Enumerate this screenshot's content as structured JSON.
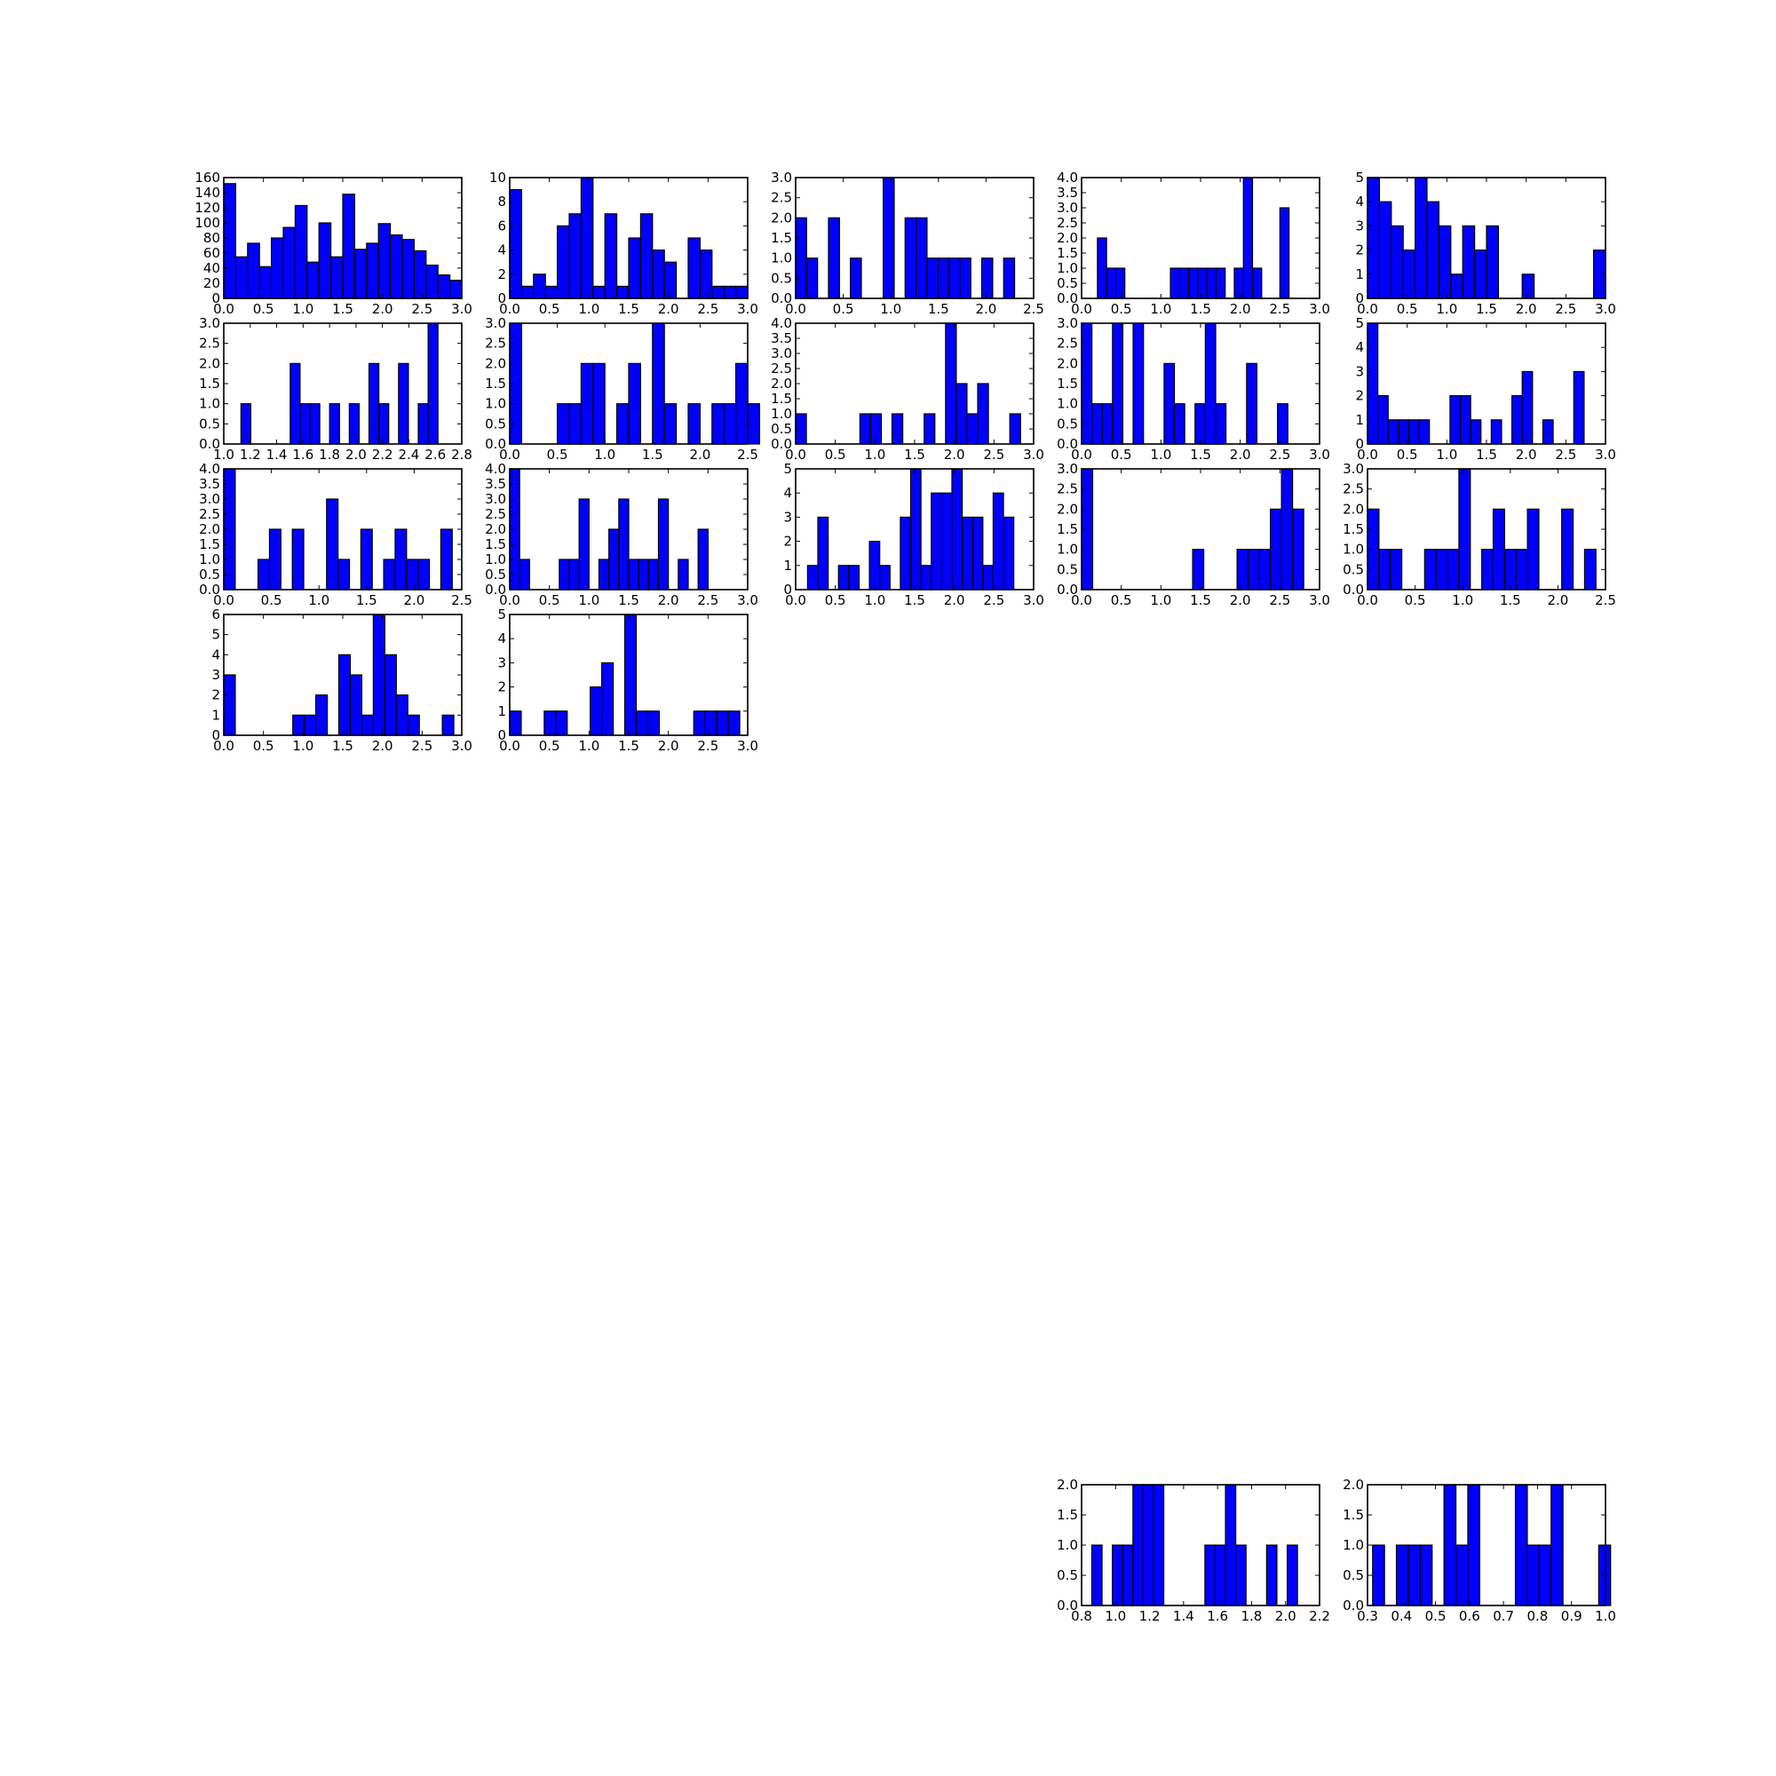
{
  "colors": {
    "bar_fill": "#0000ff",
    "bar_edge": "#000000",
    "background": "#ffffff"
  },
  "chart_data": [
    {
      "type": "bar",
      "xlim": [
        0,
        3.0
      ],
      "ylim": [
        0,
        160
      ],
      "xticks": [
        "0.0",
        "0.5",
        "1.0",
        "1.5",
        "2.0",
        "2.5",
        "3.0"
      ],
      "yticks": [
        "0",
        "20",
        "40",
        "60",
        "80",
        "100",
        "120",
        "140",
        "160"
      ],
      "bin_start": 0.0,
      "bin_width": 0.15,
      "values": [
        152,
        55,
        73,
        42,
        80,
        94,
        123,
        48,
        100,
        55,
        138,
        65,
        73,
        99,
        84,
        78,
        63,
        44,
        31,
        24
      ],
      "grid": false
    },
    {
      "type": "bar",
      "xlim": [
        0,
        3.0
      ],
      "ylim": [
        0,
        10
      ],
      "xticks": [
        "0.0",
        "0.5",
        "1.0",
        "1.5",
        "2.0",
        "2.5",
        "3.0"
      ],
      "yticks": [
        "0",
        "2",
        "4",
        "6",
        "8",
        "10"
      ],
      "bin_start": 0.0,
      "bin_width": 0.15,
      "values": [
        9,
        1,
        2,
        1,
        6,
        7,
        10,
        1,
        7,
        1,
        5,
        7,
        4,
        3,
        0,
        5,
        4,
        1,
        1,
        1
      ],
      "grid": false
    },
    {
      "type": "bar",
      "xlim": [
        0,
        2.5
      ],
      "ylim": [
        0,
        3.0
      ],
      "xticks": [
        "0.0",
        "0.5",
        "1.0",
        "1.5",
        "2.0",
        "2.5"
      ],
      "yticks": [
        "0.0",
        "0.5",
        "1.0",
        "1.5",
        "2.0",
        "2.5",
        "3.0"
      ],
      "bin_start": 0.0,
      "bin_width": 0.115,
      "values": [
        2,
        1,
        0,
        2,
        0,
        1,
        0,
        0,
        3,
        0,
        2,
        2,
        1,
        1,
        1,
        1,
        0,
        1,
        0,
        1
      ],
      "grid": false
    },
    {
      "type": "bar",
      "xlim": [
        0,
        3.0
      ],
      "ylim": [
        0,
        4.0
      ],
      "xticks": [
        "0.0",
        "0.5",
        "1.0",
        "1.5",
        "2.0",
        "2.5",
        "3.0"
      ],
      "yticks": [
        "0.0",
        "0.5",
        "1.0",
        "1.5",
        "2.0",
        "2.5",
        "3.0",
        "3.5",
        "4.0"
      ],
      "bin_start": 0.2,
      "bin_width": 0.115,
      "values": [
        2,
        1,
        1,
        0,
        0,
        0,
        0,
        0,
        1,
        1,
        1,
        1,
        1,
        1,
        0,
        1,
        4,
        1,
        0,
        0,
        3
      ],
      "grid": false
    },
    {
      "type": "bar",
      "xlim": [
        0,
        3.0
      ],
      "ylim": [
        0,
        5
      ],
      "xticks": [
        "0.0",
        "0.5",
        "1.0",
        "1.5",
        "2.0",
        "2.5",
        "3.0"
      ],
      "yticks": [
        "0",
        "1",
        "2",
        "3",
        "4",
        "5"
      ],
      "bin_start": 0.0,
      "bin_width": 0.15,
      "values": [
        5,
        4,
        3,
        2,
        5,
        4,
        3,
        1,
        3,
        2,
        3,
        0,
        0,
        1,
        0,
        0,
        0,
        0,
        0,
        2
      ],
      "grid": false
    },
    {
      "type": "bar",
      "xlim": [
        1.0,
        2.8
      ],
      "ylim": [
        0,
        3.0
      ],
      "xticks": [
        "1.0",
        "1.2",
        "1.4",
        "1.6",
        "1.8",
        "2.0",
        "2.2",
        "2.4",
        "2.6",
        "2.8"
      ],
      "yticks": [
        "0.0",
        "0.5",
        "1.0",
        "1.5",
        "2.0",
        "2.5",
        "3.0"
      ],
      "bin_start": 1.13,
      "bin_width": 0.0745,
      "values": [
        1,
        0,
        0,
        0,
        0,
        2,
        1,
        1,
        0,
        1,
        0,
        1,
        0,
        2,
        1,
        0,
        2,
        0,
        1,
        3
      ],
      "grid": false
    },
    {
      "type": "bar",
      "xlim": [
        0,
        2.5
      ],
      "ylim": [
        0,
        3.0
      ],
      "xticks": [
        "0.0",
        "0.5",
        "1.0",
        "1.5",
        "2.0",
        "2.5"
      ],
      "yticks": [
        "0.0",
        "0.5",
        "1.0",
        "1.5",
        "2.0",
        "2.5",
        "3.0"
      ],
      "bin_start": 0.0,
      "bin_width": 0.125,
      "values": [
        3,
        0,
        0,
        0,
        1,
        1,
        2,
        2,
        0,
        1,
        2,
        0,
        3,
        1,
        0,
        1,
        0,
        1,
        1,
        2,
        1
      ],
      "grid": false
    },
    {
      "type": "bar",
      "xlim": [
        0,
        3.0
      ],
      "ylim": [
        0,
        4.0
      ],
      "xticks": [
        "0.0",
        "0.5",
        "1.0",
        "1.5",
        "2.0",
        "2.5",
        "3.0"
      ],
      "yticks": [
        "0.0",
        "0.5",
        "1.0",
        "1.5",
        "2.0",
        "2.5",
        "3.0",
        "3.5",
        "4.0"
      ],
      "bin_start": 0.0,
      "bin_width": 0.135,
      "values": [
        1,
        0,
        0,
        0,
        0,
        0,
        1,
        1,
        0,
        1,
        0,
        0,
        1,
        0,
        4,
        2,
        1,
        2,
        0,
        0,
        1
      ],
      "grid": false
    },
    {
      "type": "bar",
      "xlim": [
        0,
        3.0
      ],
      "ylim": [
        0,
        3.0
      ],
      "xticks": [
        "0.0",
        "0.5",
        "1.0",
        "1.5",
        "2.0",
        "2.5",
        "3.0"
      ],
      "yticks": [
        "0.0",
        "0.5",
        "1.0",
        "1.5",
        "2.0",
        "2.5",
        "3.0"
      ],
      "bin_start": 0.0,
      "bin_width": 0.13,
      "values": [
        3,
        1,
        1,
        3,
        0,
        3,
        0,
        0,
        2,
        1,
        0,
        1,
        3,
        1,
        0,
        0,
        2,
        0,
        0,
        1
      ],
      "grid": false
    },
    {
      "type": "bar",
      "xlim": [
        0,
        3.0
      ],
      "ylim": [
        0,
        5
      ],
      "xticks": [
        "0.0",
        "0.5",
        "1.0",
        "1.5",
        "2.0",
        "2.5",
        "3.0"
      ],
      "yticks": [
        "0",
        "1",
        "2",
        "3",
        "4",
        "5"
      ],
      "bin_start": 0.0,
      "bin_width": 0.13,
      "values": [
        5,
        2,
        1,
        1,
        1,
        1,
        0,
        0,
        2,
        2,
        1,
        0,
        1,
        0,
        2,
        3,
        0,
        1,
        0,
        0,
        3
      ],
      "grid": false
    },
    {
      "type": "bar",
      "xlim": [
        0,
        2.5
      ],
      "ylim": [
        0,
        4.0
      ],
      "xticks": [
        "0.0",
        "0.5",
        "1.0",
        "1.5",
        "2.0",
        "2.5"
      ],
      "yticks": [
        "0.0",
        "0.5",
        "1.0",
        "1.5",
        "2.0",
        "2.5",
        "3.0",
        "3.5",
        "4.0"
      ],
      "bin_start": 0.0,
      "bin_width": 0.12,
      "values": [
        4,
        0,
        0,
        1,
        2,
        0,
        2,
        0,
        0,
        3,
        1,
        0,
        2,
        0,
        1,
        2,
        1,
        1,
        0,
        2
      ],
      "grid": false
    },
    {
      "type": "bar",
      "xlim": [
        0,
        3.0
      ],
      "ylim": [
        0,
        4.0
      ],
      "xticks": [
        "0.0",
        "0.5",
        "1.0",
        "1.5",
        "2.0",
        "2.5",
        "3.0"
      ],
      "yticks": [
        "0.0",
        "0.5",
        "1.0",
        "1.5",
        "2.0",
        "2.5",
        "3.0",
        "3.5",
        "4.0"
      ],
      "bin_start": 0.0,
      "bin_width": 0.125,
      "values": [
        4,
        1,
        0,
        0,
        0,
        1,
        1,
        3,
        0,
        1,
        2,
        3,
        1,
        1,
        1,
        3,
        0,
        1,
        0,
        2
      ],
      "grid": false
    },
    {
      "type": "bar",
      "xlim": [
        0,
        3.0
      ],
      "ylim": [
        0,
        5
      ],
      "xticks": [
        "0.0",
        "0.5",
        "1.0",
        "1.5",
        "2.0",
        "2.5",
        "3.0"
      ],
      "yticks": [
        "0",
        "1",
        "2",
        "3",
        "4",
        "5"
      ],
      "bin_start": 0.15,
      "bin_width": 0.13,
      "values": [
        1,
        3,
        0,
        1,
        1,
        0,
        2,
        1,
        0,
        3,
        5,
        1,
        4,
        4,
        5,
        3,
        3,
        1,
        4,
        3
      ],
      "grid": false
    },
    {
      "type": "bar",
      "xlim": [
        0,
        3.0
      ],
      "ylim": [
        0,
        3.0
      ],
      "xticks": [
        "0.0",
        "0.5",
        "1.0",
        "1.5",
        "2.0",
        "2.5",
        "3.0"
      ],
      "yticks": [
        "0.0",
        "0.5",
        "1.0",
        "1.5",
        "2.0",
        "2.5",
        "3.0"
      ],
      "bin_start": 0.0,
      "bin_width": 0.14,
      "values": [
        3,
        0,
        0,
        0,
        0,
        0,
        0,
        0,
        0,
        0,
        1,
        0,
        0,
        0,
        1,
        1,
        1,
        2,
        3,
        2
      ],
      "grid": false
    },
    {
      "type": "bar",
      "xlim": [
        0,
        2.5
      ],
      "ylim": [
        0,
        3.0
      ],
      "xticks": [
        "0.0",
        "0.5",
        "1.0",
        "1.5",
        "2.0",
        "2.5"
      ],
      "yticks": [
        "0.0",
        "0.5",
        "1.0",
        "1.5",
        "2.0",
        "2.5",
        "3.0"
      ],
      "bin_start": 0.0,
      "bin_width": 0.12,
      "values": [
        2,
        1,
        1,
        0,
        0,
        1,
        1,
        1,
        3,
        0,
        1,
        2,
        1,
        1,
        2,
        0,
        0,
        2,
        0,
        1
      ],
      "grid": false
    },
    {
      "type": "bar",
      "xlim": [
        0,
        3.0
      ],
      "ylim": [
        0,
        6
      ],
      "xticks": [
        "0.0",
        "0.5",
        "1.0",
        "1.5",
        "2.0",
        "2.5",
        "3.0"
      ],
      "yticks": [
        "0",
        "1",
        "2",
        "3",
        "4",
        "5",
        "6"
      ],
      "bin_start": 0.0,
      "bin_width": 0.145,
      "values": [
        3,
        0,
        0,
        0,
        0,
        0,
        1,
        1,
        2,
        0,
        4,
        3,
        1,
        6,
        4,
        2,
        1,
        0,
        0,
        1
      ],
      "grid": false
    },
    {
      "type": "bar",
      "xlim": [
        0,
        3.0
      ],
      "ylim": [
        0,
        5
      ],
      "xticks": [
        "0.0",
        "0.5",
        "1.0",
        "1.5",
        "2.0",
        "2.5",
        "3.0"
      ],
      "yticks": [
        "0",
        "1",
        "2",
        "3",
        "4",
        "5"
      ],
      "bin_start": 0.0,
      "bin_width": 0.145,
      "values": [
        1,
        0,
        0,
        1,
        1,
        0,
        0,
        2,
        3,
        0,
        5,
        1,
        1,
        0,
        0,
        0,
        1,
        1,
        1,
        1
      ],
      "grid": false
    },
    {
      "type": "bar",
      "xlim": [
        0.8,
        2.2
      ],
      "ylim": [
        0,
        2.0
      ],
      "xticks": [
        "0.8",
        "1.0",
        "1.2",
        "1.4",
        "1.6",
        "1.8",
        "2.0",
        "2.2"
      ],
      "yticks": [
        "0.0",
        "0.5",
        "1.0",
        "1.5",
        "2.0"
      ],
      "bin_start": 0.86,
      "bin_width": 0.0605,
      "values": [
        1,
        0,
        1,
        1,
        2,
        2,
        2,
        0,
        0,
        0,
        0,
        1,
        1,
        2,
        1,
        0,
        0,
        1,
        0,
        1
      ],
      "grid": false
    },
    {
      "type": "bar",
      "xlim": [
        0.3,
        1.0
      ],
      "ylim": [
        0,
        2.0
      ],
      "xticks": [
        "0.3",
        "0.4",
        "0.5",
        "0.6",
        "0.7",
        "0.8",
        "0.9",
        "1.0"
      ],
      "yticks": [
        "0.0",
        "0.5",
        "1.0",
        "1.5",
        "2.0"
      ],
      "bin_start": 0.315,
      "bin_width": 0.035,
      "values": [
        1,
        0,
        1,
        1,
        1,
        0,
        2,
        1,
        2,
        0,
        0,
        0,
        2,
        1,
        1,
        2,
        0,
        0,
        0,
        1
      ],
      "grid": false
    }
  ]
}
